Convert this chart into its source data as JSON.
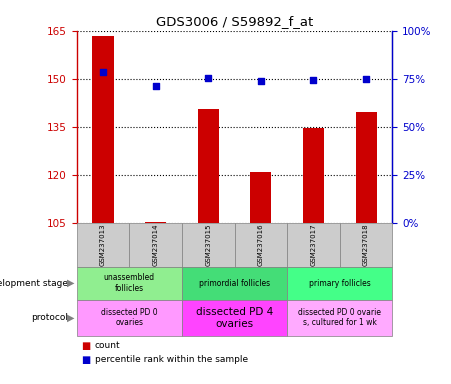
{
  "title": "GDS3006 / S59892_f_at",
  "samples": [
    "GSM237013",
    "GSM237014",
    "GSM237015",
    "GSM237016",
    "GSM237017",
    "GSM237018"
  ],
  "counts": [
    163.5,
    105.3,
    140.5,
    121.0,
    134.5,
    139.5
  ],
  "percentiles": [
    78.5,
    71.0,
    75.5,
    74.0,
    74.5,
    75.0
  ],
  "ylim_left": [
    105,
    165
  ],
  "ylim_right": [
    0,
    100
  ],
  "yticks_left": [
    105,
    120,
    135,
    150,
    165
  ],
  "yticks_right": [
    0,
    25,
    50,
    75,
    100
  ],
  "dev_stage_groups": [
    {
      "label": "unassembled\nfollicles",
      "start": 0,
      "end": 2,
      "color": "#90EE90"
    },
    {
      "label": "primordial follicles",
      "start": 2,
      "end": 4,
      "color": "#44DD77"
    },
    {
      "label": "primary follicles",
      "start": 4,
      "end": 6,
      "color": "#44FF88"
    }
  ],
  "protocol_groups": [
    {
      "label": "dissected PD 0\novaries",
      "start": 0,
      "end": 2,
      "color": "#FF99FF"
    },
    {
      "label": "dissected PD 4\novaries",
      "start": 2,
      "end": 4,
      "color": "#FF44FF"
    },
    {
      "label": "dissected PD 0 ovarie\ns, cultured for 1 wk",
      "start": 4,
      "end": 6,
      "color": "#FFAAFF"
    }
  ],
  "bar_color": "#CC0000",
  "dot_color": "#0000CC",
  "bar_width": 0.4,
  "left_axis_color": "#CC0000",
  "right_axis_color": "#0000CC"
}
